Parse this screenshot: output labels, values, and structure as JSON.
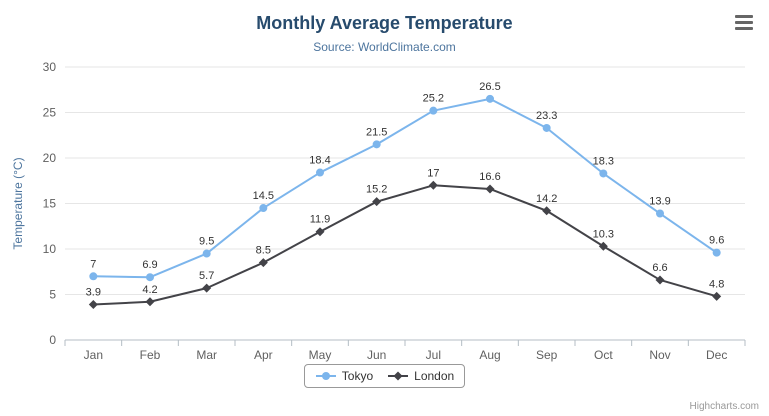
{
  "chart_data": {
    "type": "line",
    "title": "Monthly Average Temperature",
    "subtitle": "Source: WorldClimate.com",
    "categories": [
      "Jan",
      "Feb",
      "Mar",
      "Apr",
      "May",
      "Jun",
      "Jul",
      "Aug",
      "Sep",
      "Oct",
      "Nov",
      "Dec"
    ],
    "series": [
      {
        "name": "Tokyo",
        "color": "#7cb5ec",
        "marker": "circle",
        "values": [
          7,
          6.9,
          9.5,
          14.5,
          18.4,
          21.5,
          25.2,
          26.5,
          23.3,
          18.3,
          13.9,
          9.6
        ]
      },
      {
        "name": "London",
        "color": "#434348",
        "marker": "diamond",
        "values": [
          3.9,
          4.2,
          5.7,
          8.5,
          11.9,
          15.2,
          17,
          16.6,
          14.2,
          10.3,
          6.6,
          4.8
        ]
      }
    ],
    "xlabel": "",
    "ylabel": "Temperature (°C)",
    "ylim": [
      0,
      30
    ],
    "ytick_step": 5,
    "grid": true,
    "legend_position": "bottom",
    "legend": [
      "Tokyo",
      "London"
    ]
  },
  "colors": {
    "title": "#274b6d",
    "subtitle": "#4d759e",
    "axis_label": "#606060",
    "axis_title": "#4d759e",
    "grid": "#e6e6e6",
    "axis_line": "#b4bdc4",
    "data_label": "#333333",
    "legend_text": "#333333",
    "legend_border": "#999999",
    "credits": "#999999",
    "menu_icon": "#666666"
  },
  "credits": {
    "text": "Highcharts.com"
  },
  "icons": {
    "context_menu": "hamburger-menu-icon"
  }
}
